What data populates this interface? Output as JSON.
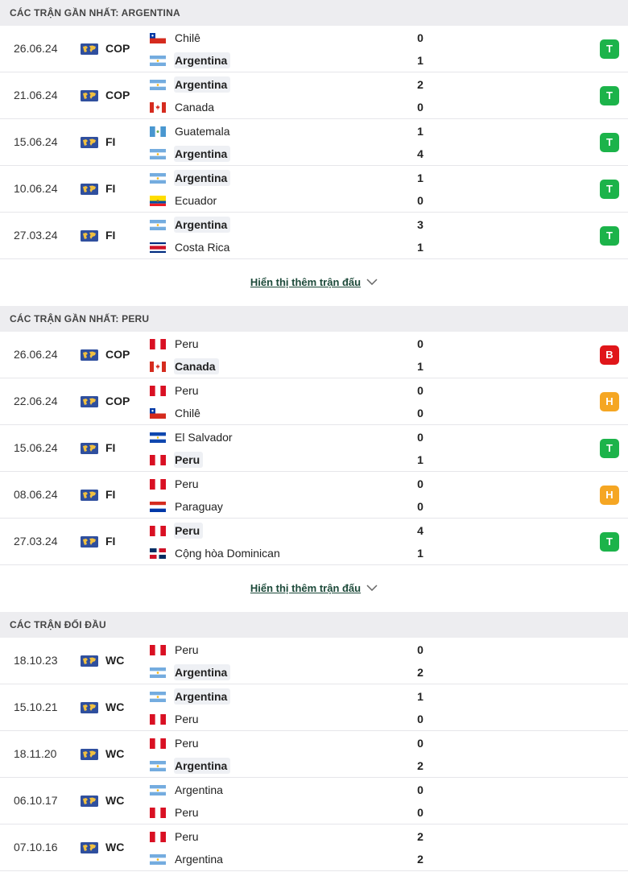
{
  "sections": [
    {
      "title": "CÁC TRẬN GẦN NHẤT: ARGENTINA",
      "show_more": "Hiển thị thêm trận đấu",
      "matches": [
        {
          "date": "26.06.24",
          "comp": "COP",
          "home": {
            "name": "Chilê",
            "flag": "chile",
            "bold": false
          },
          "away": {
            "name": "Argentina",
            "flag": "argentina",
            "bold": true
          },
          "home_score": "0",
          "away_score": "1",
          "result": "T"
        },
        {
          "date": "21.06.24",
          "comp": "COP",
          "home": {
            "name": "Argentina",
            "flag": "argentina",
            "bold": true
          },
          "away": {
            "name": "Canada",
            "flag": "canada",
            "bold": false
          },
          "home_score": "2",
          "away_score": "0",
          "result": "T"
        },
        {
          "date": "15.06.24",
          "comp": "FI",
          "home": {
            "name": "Guatemala",
            "flag": "guatemala",
            "bold": false
          },
          "away": {
            "name": "Argentina",
            "flag": "argentina",
            "bold": true
          },
          "home_score": "1",
          "away_score": "4",
          "result": "T"
        },
        {
          "date": "10.06.24",
          "comp": "FI",
          "home": {
            "name": "Argentina",
            "flag": "argentina",
            "bold": true
          },
          "away": {
            "name": "Ecuador",
            "flag": "ecuador",
            "bold": false
          },
          "home_score": "1",
          "away_score": "0",
          "result": "T"
        },
        {
          "date": "27.03.24",
          "comp": "FI",
          "home": {
            "name": "Argentina",
            "flag": "argentina",
            "bold": true
          },
          "away": {
            "name": "Costa Rica",
            "flag": "costarica",
            "bold": false
          },
          "home_score": "3",
          "away_score": "1",
          "result": "T"
        }
      ]
    },
    {
      "title": "CÁC TRẬN GẦN NHẤT: PERU",
      "show_more": "Hiển thị thêm trận đấu",
      "matches": [
        {
          "date": "26.06.24",
          "comp": "COP",
          "home": {
            "name": "Peru",
            "flag": "peru",
            "bold": false
          },
          "away": {
            "name": "Canada",
            "flag": "canada",
            "bold": true
          },
          "home_score": "0",
          "away_score": "1",
          "result": "B"
        },
        {
          "date": "22.06.24",
          "comp": "COP",
          "home": {
            "name": "Peru",
            "flag": "peru",
            "bold": false
          },
          "away": {
            "name": "Chilê",
            "flag": "chile",
            "bold": false
          },
          "home_score": "0",
          "away_score": "0",
          "result": "H"
        },
        {
          "date": "15.06.24",
          "comp": "FI",
          "home": {
            "name": "El Salvador",
            "flag": "elsalvador",
            "bold": false
          },
          "away": {
            "name": "Peru",
            "flag": "peru",
            "bold": true
          },
          "home_score": "0",
          "away_score": "1",
          "result": "T"
        },
        {
          "date": "08.06.24",
          "comp": "FI",
          "home": {
            "name": "Peru",
            "flag": "peru",
            "bold": false
          },
          "away": {
            "name": "Paraguay",
            "flag": "paraguay",
            "bold": false
          },
          "home_score": "0",
          "away_score": "0",
          "result": "H"
        },
        {
          "date": "27.03.24",
          "comp": "FI",
          "home": {
            "name": "Peru",
            "flag": "peru",
            "bold": true
          },
          "away": {
            "name": "Cộng hòa Dominican",
            "flag": "dominican",
            "bold": false
          },
          "home_score": "4",
          "away_score": "1",
          "result": "T"
        }
      ]
    },
    {
      "title": "CÁC TRẬN ĐỐI ĐẦU",
      "show_more": "",
      "matches": [
        {
          "date": "18.10.23",
          "comp": "WC",
          "home": {
            "name": "Peru",
            "flag": "peru",
            "bold": false
          },
          "away": {
            "name": "Argentina",
            "flag": "argentina",
            "bold": true
          },
          "home_score": "0",
          "away_score": "2",
          "result": ""
        },
        {
          "date": "15.10.21",
          "comp": "WC",
          "home": {
            "name": "Argentina",
            "flag": "argentina",
            "bold": true
          },
          "away": {
            "name": "Peru",
            "flag": "peru",
            "bold": false
          },
          "home_score": "1",
          "away_score": "0",
          "result": ""
        },
        {
          "date": "18.11.20",
          "comp": "WC",
          "home": {
            "name": "Peru",
            "flag": "peru",
            "bold": false
          },
          "away": {
            "name": "Argentina",
            "flag": "argentina",
            "bold": true
          },
          "home_score": "0",
          "away_score": "2",
          "result": ""
        },
        {
          "date": "06.10.17",
          "comp": "WC",
          "home": {
            "name": "Argentina",
            "flag": "argentina",
            "bold": false
          },
          "away": {
            "name": "Peru",
            "flag": "peru",
            "bold": false
          },
          "home_score": "0",
          "away_score": "0",
          "result": ""
        },
        {
          "date": "07.10.16",
          "comp": "WC",
          "home": {
            "name": "Peru",
            "flag": "peru",
            "bold": false
          },
          "away": {
            "name": "Argentina",
            "flag": "argentina",
            "bold": false
          },
          "home_score": "2",
          "away_score": "2",
          "result": ""
        }
      ]
    }
  ],
  "colors": {
    "win": "#1cb34a",
    "loss": "#e0161a",
    "draw": "#f5a623",
    "link": "#1d4a3a"
  },
  "icons": {
    "competition": "world-map-icon",
    "show_more": "chevron-down-icon"
  }
}
